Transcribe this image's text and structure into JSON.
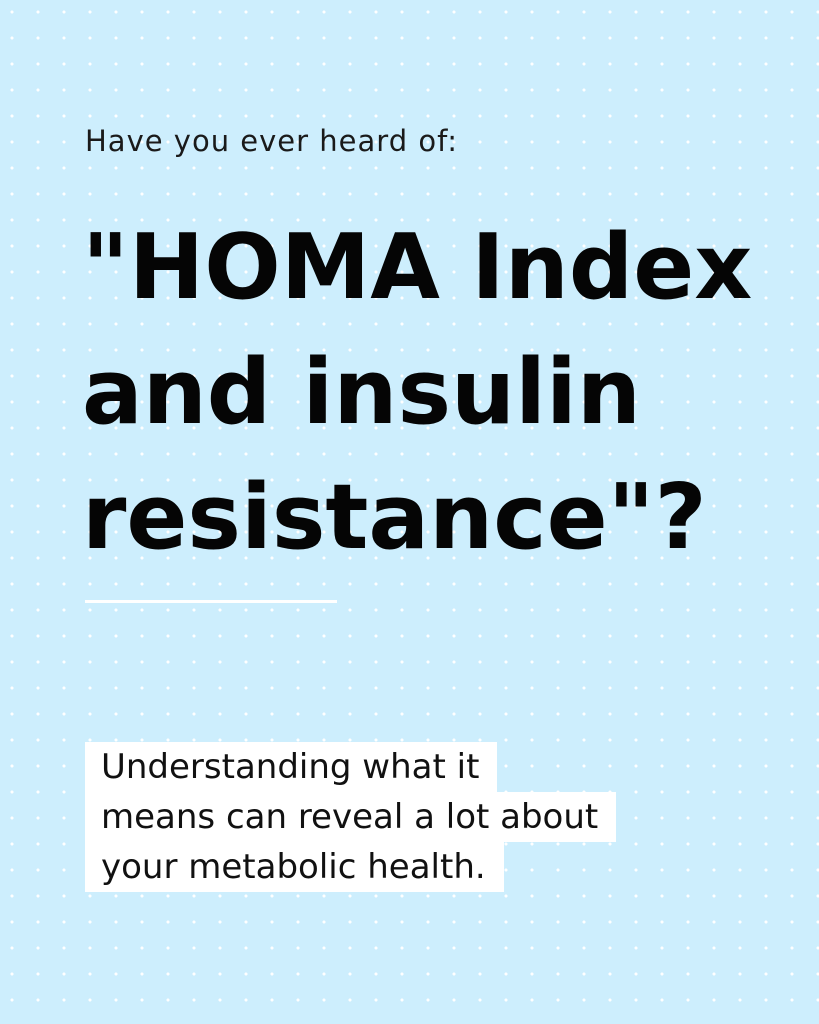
{
  "kicker": "Have you ever heard of:",
  "headline": {
    "lines": [
      "\"HOMA Index",
      "and insulin",
      "resistance\"?"
    ]
  },
  "body": {
    "lines": [
      "Understanding what it",
      "means can reveal a lot about",
      "your metabolic health."
    ]
  },
  "colors": {
    "background": "#cdeefd",
    "dots": "#ffffff",
    "text": "#050505",
    "highlight": "#ffffff"
  }
}
